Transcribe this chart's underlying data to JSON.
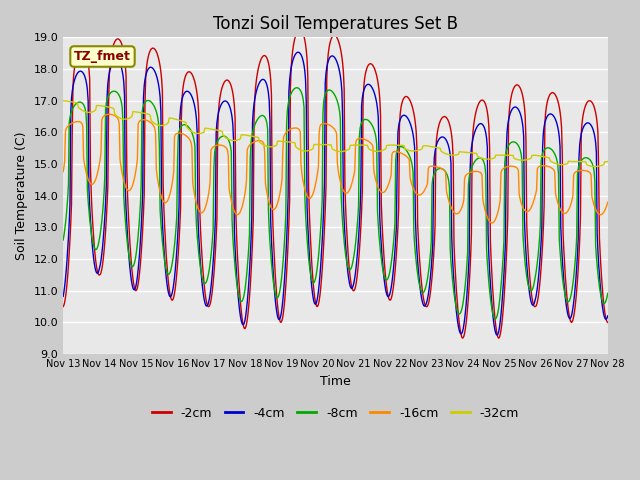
{
  "title": "Tonzi Soil Temperatures Set B",
  "xlabel": "Time",
  "ylabel": "Soil Temperature (C)",
  "ylim": [
    9.0,
    19.0
  ],
  "yticks": [
    9.0,
    10.0,
    11.0,
    12.0,
    13.0,
    14.0,
    15.0,
    16.0,
    17.0,
    18.0,
    19.0
  ],
  "xtick_labels": [
    "Nov 13",
    "Nov 14",
    "Nov 15",
    "Nov 16",
    "Nov 17",
    "Nov 18",
    "Nov 19",
    "Nov 20",
    "Nov 21",
    "Nov 22",
    "Nov 23",
    "Nov 24",
    "Nov 25",
    "Nov 26",
    "Nov 27",
    "Nov 28"
  ],
  "series_colors": [
    "#cc0000",
    "#0000cc",
    "#00aa00",
    "#ff8800",
    "#cccc00"
  ],
  "series_labels": [
    "-2cm",
    "-4cm",
    "-8cm",
    "-16cm",
    "-32cm"
  ],
  "legend_label": "TZ_fmet",
  "background_color": "#dddddd",
  "plot_bg_color": "#e8e8e8",
  "grid_color": "#ffffff",
  "title_fontsize": 12,
  "n_days": 15,
  "pts_per_day": 48
}
